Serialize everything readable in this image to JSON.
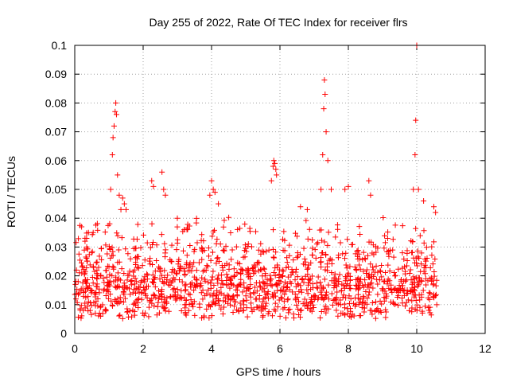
{
  "chart_data": {
    "type": "scatter",
    "title": "Day 255 of 2022, Rate Of TEC Index for receiver flrs",
    "xlabel": "GPS time / hours",
    "ylabel": "ROTI / TECUs",
    "xlim": [
      0,
      12
    ],
    "ylim": [
      0,
      0.1
    ],
    "xticks": [
      0,
      2,
      4,
      6,
      8,
      10,
      12
    ],
    "yticks": [
      0,
      0.01,
      0.02,
      0.03,
      0.04,
      0.05,
      0.06,
      0.07,
      0.08,
      0.09,
      0.1
    ],
    "xtick_labels": [
      "0",
      "2",
      "4",
      "6",
      "8",
      "10",
      "12"
    ],
    "ytick_labels": [
      "0",
      "0.01",
      "0.02",
      "0.03",
      "0.04",
      "0.05",
      "0.06",
      "0.07",
      "0.08",
      "0.09",
      "0.1"
    ],
    "grid": true,
    "marker": "+",
    "color": "#ff0000",
    "data_extent_hours": [
      0,
      10.6
    ],
    "baseline_level": 0.012,
    "series": [
      {
        "name": "ROTI",
        "x": [
          0.05,
          0.1,
          0.2,
          0.3,
          0.35,
          0.4,
          0.5,
          1.05,
          1.1,
          1.12,
          1.15,
          1.18,
          1.2,
          1.22,
          1.25,
          1.3,
          1.35,
          1.4,
          1.45,
          1.5,
          2.25,
          2.3,
          2.55,
          2.6,
          2.65,
          3.0,
          3.2,
          3.95,
          4.0,
          4.05,
          4.1,
          4.2,
          5.75,
          5.8,
          5.82,
          5.85,
          5.88,
          5.9,
          6.6,
          6.8,
          7.2,
          7.25,
          7.28,
          7.3,
          7.32,
          7.35,
          7.4,
          7.5,
          7.9,
          8.0,
          8.6,
          8.65,
          9.9,
          9.95,
          9.97,
          10.0,
          10.05,
          10.2,
          10.5,
          10.55
        ],
        "y": [
          0.022,
          0.018,
          0.037,
          0.032,
          0.03,
          0.035,
          0.028,
          0.05,
          0.062,
          0.068,
          0.072,
          0.077,
          0.08,
          0.076,
          0.055,
          0.048,
          0.043,
          0.047,
          0.045,
          0.043,
          0.053,
          0.051,
          0.056,
          0.05,
          0.048,
          0.04,
          0.036,
          0.048,
          0.053,
          0.05,
          0.049,
          0.045,
          0.053,
          0.058,
          0.06,
          0.059,
          0.057,
          0.055,
          0.044,
          0.043,
          0.05,
          0.062,
          0.078,
          0.088,
          0.083,
          0.07,
          0.06,
          0.05,
          0.05,
          0.051,
          0.053,
          0.048,
          0.05,
          0.062,
          0.074,
          0.1,
          0.05,
          0.046,
          0.044,
          0.042
        ]
      }
    ]
  }
}
